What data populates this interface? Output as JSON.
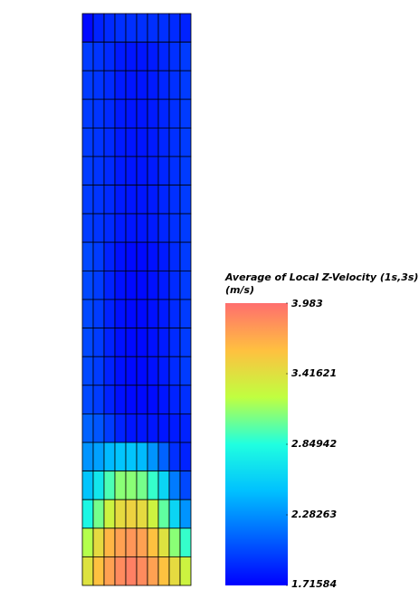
{
  "chart_data": {
    "type": "heatmap",
    "colorbar_title": "Average of Local Z-Velocity (1s,3s)",
    "colorbar_unit": "(m/s)",
    "zlim": [
      1.71584,
      3.983
    ],
    "zticks": [
      3.983,
      3.41621,
      2.84942,
      2.28263,
      1.71584
    ],
    "colorscale": [
      "#0000ff",
      "#0060ff",
      "#00c0ff",
      "#20ffe0",
      "#c0ff40",
      "#ffc040",
      "#ff6e6e"
    ],
    "z": [
      [
        1.75,
        1.85,
        1.88,
        1.9,
        1.9,
        1.9,
        1.9,
        1.9,
        1.88,
        1.85
      ],
      [
        1.95,
        1.92,
        1.88,
        1.82,
        1.8,
        1.8,
        1.82,
        1.86,
        1.9,
        1.95
      ],
      [
        1.95,
        1.92,
        1.88,
        1.82,
        1.8,
        1.8,
        1.82,
        1.86,
        1.9,
        1.95
      ],
      [
        1.95,
        1.92,
        1.88,
        1.82,
        1.8,
        1.8,
        1.82,
        1.86,
        1.9,
        1.95
      ],
      [
        1.95,
        1.92,
        1.88,
        1.82,
        1.8,
        1.8,
        1.82,
        1.86,
        1.9,
        1.95
      ],
      [
        1.95,
        1.92,
        1.88,
        1.82,
        1.8,
        1.8,
        1.82,
        1.86,
        1.9,
        1.95
      ],
      [
        1.95,
        1.92,
        1.88,
        1.82,
        1.8,
        1.8,
        1.82,
        1.86,
        1.9,
        1.95
      ],
      [
        1.95,
        1.92,
        1.88,
        1.82,
        1.8,
        1.8,
        1.82,
        1.86,
        1.9,
        1.95
      ],
      [
        2.0,
        1.95,
        1.85,
        1.78,
        1.75,
        1.75,
        1.78,
        1.82,
        1.88,
        1.95
      ],
      [
        2.0,
        1.95,
        1.85,
        1.78,
        1.75,
        1.75,
        1.78,
        1.82,
        1.88,
        1.95
      ],
      [
        2.0,
        1.95,
        1.85,
        1.78,
        1.75,
        1.75,
        1.78,
        1.82,
        1.88,
        1.95
      ],
      [
        2.0,
        1.95,
        1.85,
        1.78,
        1.75,
        1.75,
        1.78,
        1.82,
        1.88,
        1.95
      ],
      [
        2.0,
        1.95,
        1.85,
        1.78,
        1.75,
        1.75,
        1.78,
        1.82,
        1.88,
        1.95
      ],
      [
        2.0,
        1.95,
        1.85,
        1.78,
        1.75,
        1.75,
        1.76,
        1.8,
        1.85,
        1.9
      ],
      [
        2.1,
        2.05,
        1.95,
        1.85,
        1.8,
        1.8,
        1.8,
        1.8,
        1.82,
        1.85
      ],
      [
        2.3,
        2.35,
        2.45,
        2.5,
        2.5,
        2.45,
        2.3,
        2.1,
        1.9,
        1.85
      ],
      [
        2.5,
        2.7,
        2.95,
        3.1,
        3.1,
        3.05,
        2.9,
        2.6,
        2.2,
        2.0
      ],
      [
        2.8,
        3.05,
        3.3,
        3.45,
        3.5,
        3.45,
        3.3,
        3.0,
        2.6,
        2.3
      ],
      [
        3.2,
        3.45,
        3.65,
        3.75,
        3.8,
        3.75,
        3.6,
        3.4,
        3.1,
        2.9
      ],
      [
        3.4,
        3.6,
        3.75,
        3.85,
        3.9,
        3.85,
        3.75,
        3.6,
        3.45,
        3.3
      ]
    ]
  }
}
